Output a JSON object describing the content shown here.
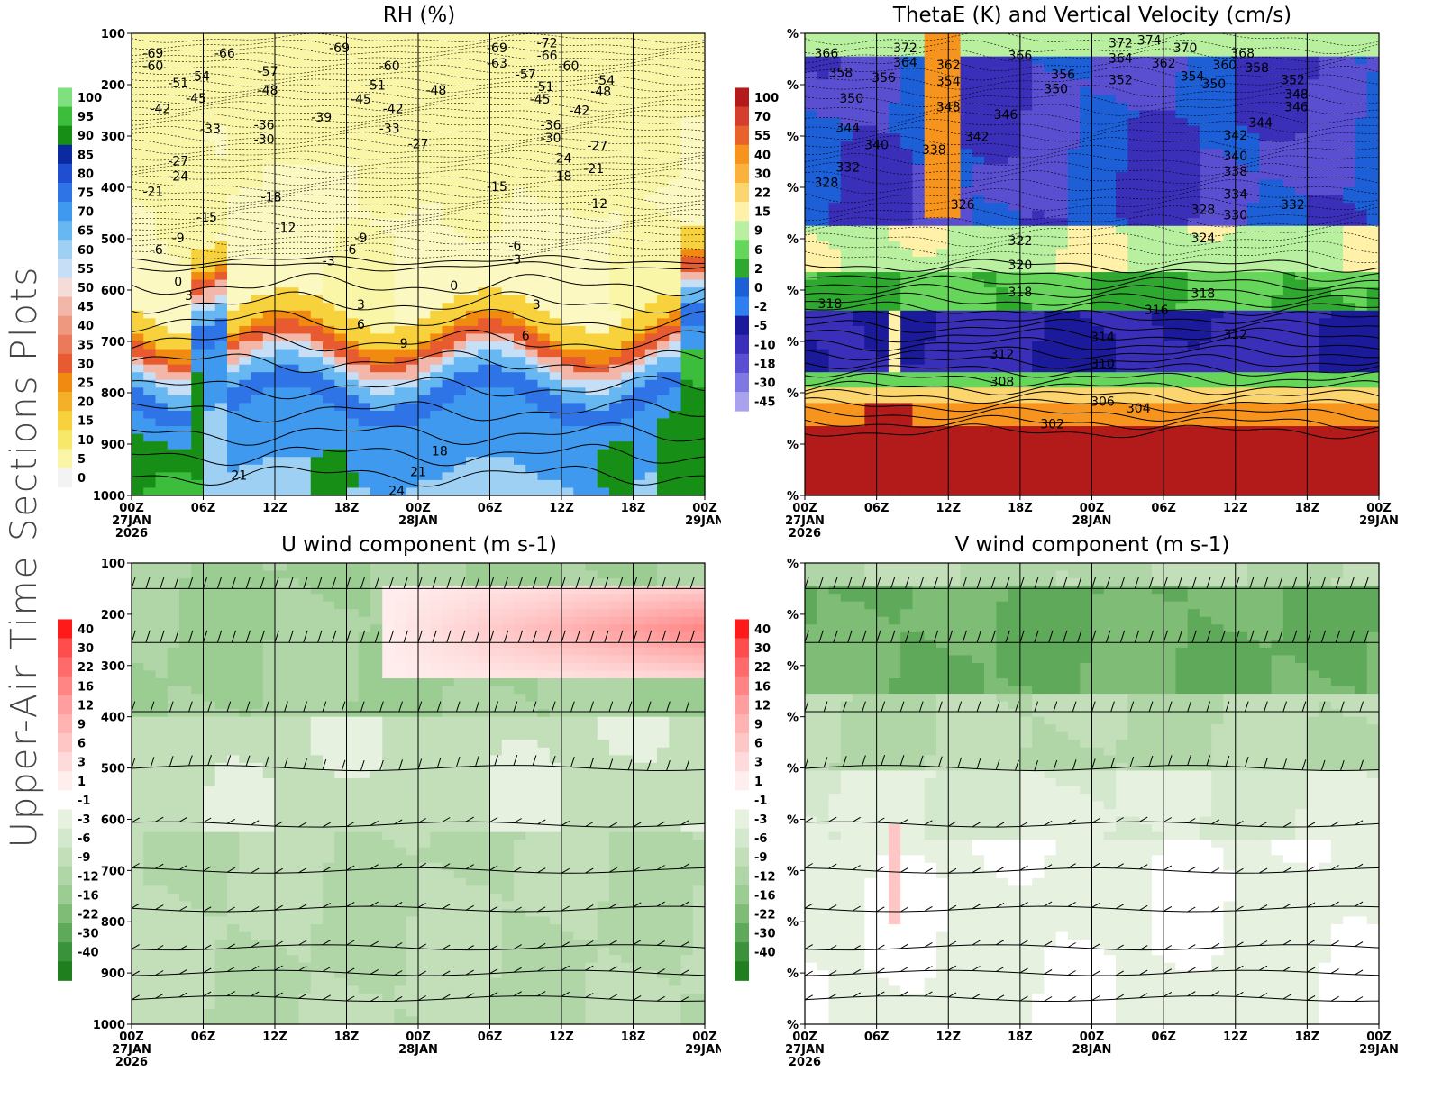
{
  "page": {
    "side_title": "Upper-Air Time Sections Plots"
  },
  "time_axis": {
    "labels": [
      "00Z",
      "06Z",
      "12Z",
      "18Z",
      "00Z",
      "06Z",
      "12Z",
      "18Z",
      "00Z"
    ],
    "dates": {
      "0": [
        "27JAN",
        "2026"
      ],
      "4": [
        "28JAN"
      ],
      "8": [
        "29JAN"
      ]
    }
  },
  "chart_data": [
    {
      "id": "rh",
      "type": "heatmap",
      "title": "RH (%)",
      "xlabel": "",
      "ylabel": "",
      "y_ticks": [
        "100",
        "200",
        "300",
        "400",
        "500",
        "600",
        "700",
        "800",
        "900",
        "1000"
      ],
      "colorbar": {
        "levels": [
          "100",
          "95",
          "90",
          "85",
          "80",
          "75",
          "70",
          "65",
          "60",
          "55",
          "50",
          "45",
          "40",
          "35",
          "30",
          "25",
          "20",
          "15",
          "10",
          "5",
          "0"
        ],
        "colors": [
          "#7ee07e",
          "#3cbd3c",
          "#178f17",
          "#0c2aa0",
          "#1f4fd0",
          "#2e74e6",
          "#3f99ef",
          "#67b8f2",
          "#9ed0f4",
          "#c6dff6",
          "#f4dcd8",
          "#f2b7a8",
          "#ee9880",
          "#ea7a5a",
          "#e85a2f",
          "#f08a10",
          "#f5b02a",
          "#f8d23c",
          "#f7e86a",
          "#faf6a8",
          "#f3f3f3"
        ]
      },
      "contour_labels": [
        {
          "t": 0.3,
          "p": 140,
          "v": "-69"
        },
        {
          "t": 1.3,
          "p": 140,
          "v": "-66"
        },
        {
          "t": 2.9,
          "p": 130,
          "v": "-69"
        },
        {
          "t": 5.1,
          "p": 130,
          "v": "-69"
        },
        {
          "t": 5.8,
          "p": 120,
          "v": "-72"
        },
        {
          "t": 5.8,
          "p": 145,
          "v": "-66"
        },
        {
          "t": 5.1,
          "p": 160,
          "v": "-63"
        },
        {
          "t": 0.3,
          "p": 165,
          "v": "-60"
        },
        {
          "t": 3.6,
          "p": 165,
          "v": "-60"
        },
        {
          "t": 6.1,
          "p": 165,
          "v": "-60"
        },
        {
          "t": 0.65,
          "p": 198,
          "v": "-51"
        },
        {
          "t": 0.95,
          "p": 185,
          "v": "-54"
        },
        {
          "t": 1.9,
          "p": 175,
          "v": "-57"
        },
        {
          "t": 5.5,
          "p": 182,
          "v": "-57"
        },
        {
          "t": 6.6,
          "p": 193,
          "v": "-54"
        },
        {
          "t": 1.9,
          "p": 212,
          "v": "-48"
        },
        {
          "t": 4.25,
          "p": 212,
          "v": "-48"
        },
        {
          "t": 6.55,
          "p": 215,
          "v": "-48"
        },
        {
          "t": 3.4,
          "p": 203,
          "v": "-51"
        },
        {
          "t": 5.75,
          "p": 205,
          "v": "-51"
        },
        {
          "t": 0.9,
          "p": 228,
          "v": "-45"
        },
        {
          "t": 3.2,
          "p": 230,
          "v": "-45"
        },
        {
          "t": 5.7,
          "p": 230,
          "v": "-45"
        },
        {
          "t": 0.4,
          "p": 248,
          "v": "-42"
        },
        {
          "t": 3.65,
          "p": 248,
          "v": "-42"
        },
        {
          "t": 6.25,
          "p": 252,
          "v": "-42"
        },
        {
          "t": 2.65,
          "p": 265,
          "v": "-39"
        },
        {
          "t": 1.1,
          "p": 288,
          "v": "-33"
        },
        {
          "t": 1.85,
          "p": 280,
          "v": "-36"
        },
        {
          "t": 3.6,
          "p": 287,
          "v": "-33"
        },
        {
          "t": 5.85,
          "p": 280,
          "v": "-36"
        },
        {
          "t": 1.85,
          "p": 308,
          "v": "-30"
        },
        {
          "t": 5.85,
          "p": 305,
          "v": "-30"
        },
        {
          "t": 4.0,
          "p": 317,
          "v": "-27"
        },
        {
          "t": 6.5,
          "p": 320,
          "v": "-27"
        },
        {
          "t": 0.65,
          "p": 350,
          "v": "-27"
        },
        {
          "t": 6.0,
          "p": 345,
          "v": "-24"
        },
        {
          "t": 6.45,
          "p": 365,
          "v": "-21"
        },
        {
          "t": 0.65,
          "p": 380,
          "v": "-24"
        },
        {
          "t": 6.0,
          "p": 380,
          "v": "-18"
        },
        {
          "t": 0.3,
          "p": 410,
          "v": "-21"
        },
        {
          "t": 5.1,
          "p": 400,
          "v": "-15"
        },
        {
          "t": 1.95,
          "p": 420,
          "v": "-18"
        },
        {
          "t": 6.5,
          "p": 433,
          "v": "-12"
        },
        {
          "t": 1.05,
          "p": 460,
          "v": "-15"
        },
        {
          "t": 2.15,
          "p": 480,
          "v": "-12"
        },
        {
          "t": 0.65,
          "p": 500,
          "v": "-9"
        },
        {
          "t": 3.2,
          "p": 500,
          "v": "-9"
        },
        {
          "t": 0.35,
          "p": 523,
          "v": "-6"
        },
        {
          "t": 3.05,
          "p": 523,
          "v": "-6"
        },
        {
          "t": 5.35,
          "p": 515,
          "v": "-6"
        },
        {
          "t": 2.75,
          "p": 545,
          "v": "-3"
        },
        {
          "t": 5.35,
          "p": 542,
          "v": "-3"
        },
        {
          "t": 0.65,
          "p": 585,
          "v": "0"
        },
        {
          "t": 4.5,
          "p": 593,
          "v": "0"
        },
        {
          "t": 0.8,
          "p": 612,
          "v": "3"
        },
        {
          "t": 3.2,
          "p": 630,
          "v": "3"
        },
        {
          "t": 5.65,
          "p": 630,
          "v": "3"
        },
        {
          "t": 3.2,
          "p": 668,
          "v": "6"
        },
        {
          "t": 5.5,
          "p": 690,
          "v": "6"
        },
        {
          "t": 3.8,
          "p": 705,
          "v": "9"
        },
        {
          "t": 4.3,
          "p": 915,
          "v": "18"
        },
        {
          "t": 1.5,
          "p": 962,
          "v": "21"
        },
        {
          "t": 4.0,
          "p": 955,
          "v": "21"
        },
        {
          "t": 3.7,
          "p": 992,
          "v": "24"
        }
      ]
    },
    {
      "id": "thetae",
      "type": "heatmap",
      "title": "ThetaE (K) and Vertical Velocity (cm/s)",
      "xlabel": "",
      "ylabel": "",
      "y_ticks": [
        "%",
        "%",
        "%",
        "%",
        "%",
        "%",
        "%",
        "%",
        "%",
        "%"
      ],
      "colorbar": {
        "levels": [
          "100",
          "70",
          "55",
          "40",
          "30",
          "22",
          "15",
          "9",
          "6",
          "2",
          "0",
          "-2",
          "-5",
          "-10",
          "-18",
          "-30",
          "-45"
        ],
        "colors": [
          "#b31b1b",
          "#d33f2c",
          "#e8632b",
          "#f7941d",
          "#fbb13c",
          "#fdd56e",
          "#fff2a8",
          "#b8f0a0",
          "#66d65a",
          "#2ea82e",
          "#1c5fd6",
          "#2f7ff0",
          "#1a1a9a",
          "#3a2fb8",
          "#5a4fd0",
          "#7f78e2",
          "#a9a3ef"
        ]
      },
      "contour_labels": [
        {
          "t": 0.3,
          "p": 140,
          "v": "366"
        },
        {
          "t": 1.4,
          "p": 130,
          "v": "372"
        },
        {
          "t": 4.4,
          "p": 120,
          "v": "372"
        },
        {
          "t": 4.8,
          "p": 115,
          "v": "374"
        },
        {
          "t": 5.3,
          "p": 130,
          "v": "370"
        },
        {
          "t": 6.1,
          "p": 140,
          "v": "368"
        },
        {
          "t": 1.4,
          "p": 158,
          "v": "364"
        },
        {
          "t": 2.0,
          "p": 163,
          "v": "362"
        },
        {
          "t": 3.0,
          "p": 145,
          "v": "366"
        },
        {
          "t": 4.4,
          "p": 150,
          "v": "364"
        },
        {
          "t": 5.0,
          "p": 160,
          "v": "362"
        },
        {
          "t": 5.85,
          "p": 163,
          "v": "360"
        },
        {
          "t": 6.3,
          "p": 168,
          "v": "358"
        },
        {
          "t": 0.5,
          "p": 178,
          "v": "358"
        },
        {
          "t": 1.1,
          "p": 188,
          "v": "356"
        },
        {
          "t": 2.0,
          "p": 195,
          "v": "354"
        },
        {
          "t": 3.6,
          "p": 182,
          "v": "356"
        },
        {
          "t": 4.4,
          "p": 192,
          "v": "352"
        },
        {
          "t": 5.4,
          "p": 185,
          "v": "354"
        },
        {
          "t": 5.7,
          "p": 200,
          "v": "350"
        },
        {
          "t": 6.8,
          "p": 192,
          "v": "352"
        },
        {
          "t": 0.65,
          "p": 228,
          "v": "350"
        },
        {
          "t": 3.5,
          "p": 210,
          "v": "350"
        },
        {
          "t": 6.85,
          "p": 220,
          "v": "348"
        },
        {
          "t": 6.85,
          "p": 245,
          "v": "346"
        },
        {
          "t": 2.0,
          "p": 245,
          "v": "348"
        },
        {
          "t": 2.8,
          "p": 260,
          "v": "346"
        },
        {
          "t": 6.35,
          "p": 275,
          "v": "344"
        },
        {
          "t": 0.6,
          "p": 285,
          "v": "344"
        },
        {
          "t": 2.4,
          "p": 303,
          "v": "342"
        },
        {
          "t": 6.0,
          "p": 300,
          "v": "342"
        },
        {
          "t": 1.0,
          "p": 318,
          "v": "340"
        },
        {
          "t": 1.8,
          "p": 328,
          "v": "338"
        },
        {
          "t": 6.0,
          "p": 340,
          "v": "340"
        },
        {
          "t": 6.0,
          "p": 370,
          "v": "338"
        },
        {
          "t": 0.6,
          "p": 362,
          "v": "332"
        },
        {
          "t": 0.3,
          "p": 392,
          "v": "328"
        },
        {
          "t": 6.0,
          "p": 415,
          "v": "334"
        },
        {
          "t": 6.8,
          "p": 435,
          "v": "332"
        },
        {
          "t": 5.55,
          "p": 445,
          "v": "328"
        },
        {
          "t": 6.0,
          "p": 455,
          "v": "330"
        },
        {
          "t": 2.2,
          "p": 435,
          "v": "326"
        },
        {
          "t": 3.0,
          "p": 505,
          "v": "322"
        },
        {
          "t": 5.55,
          "p": 500,
          "v": "324"
        },
        {
          "t": 3.0,
          "p": 553,
          "v": "320"
        },
        {
          "t": 3.0,
          "p": 605,
          "v": "318"
        },
        {
          "t": 5.55,
          "p": 608,
          "v": "318"
        },
        {
          "t": 0.35,
          "p": 628,
          "v": "318"
        },
        {
          "t": 4.9,
          "p": 640,
          "v": "316"
        },
        {
          "t": 4.15,
          "p": 693,
          "v": "314"
        },
        {
          "t": 6.0,
          "p": 688,
          "v": "312"
        },
        {
          "t": 2.75,
          "p": 726,
          "v": "312"
        },
        {
          "t": 4.15,
          "p": 745,
          "v": "310"
        },
        {
          "t": 2.75,
          "p": 780,
          "v": "308"
        },
        {
          "t": 4.15,
          "p": 818,
          "v": "306"
        },
        {
          "t": 4.65,
          "p": 832,
          "v": "304"
        },
        {
          "t": 3.45,
          "p": 862,
          "v": "302"
        }
      ]
    },
    {
      "id": "uwind",
      "type": "heatmap",
      "title": "U wind component (m s-1)",
      "xlabel": "",
      "ylabel": "",
      "y_ticks": [
        "100",
        "200",
        "300",
        "400",
        "500",
        "600",
        "700",
        "800",
        "900",
        "1000"
      ],
      "colorbar": {
        "levels": [
          "40",
          "30",
          "22",
          "16",
          "12",
          "9",
          "6",
          "3",
          "1",
          "-1",
          "-3",
          "-6",
          "-9",
          "-12",
          "-16",
          "-22",
          "-30",
          "-40"
        ],
        "colors": [
          "#ff1a1a",
          "#ff4d4d",
          "#ff6b6b",
          "#ff8585",
          "#ff9e9e",
          "#ffb3b3",
          "#ffc6c6",
          "#ffdada",
          "#ffeeee",
          "#ffffff",
          "#e6f1e0",
          "#d3e8cc",
          "#c2dfba",
          "#b0d6a7",
          "#9bcc92",
          "#7fbd77",
          "#5ea95a",
          "#3a923a",
          "#1f7f1f"
        ]
      },
      "barb_levels": [
        150,
        255,
        390,
        500,
        610,
        700,
        775,
        850,
        900,
        950
      ]
    },
    {
      "id": "vwind",
      "type": "heatmap",
      "title": "V wind component (m s-1)",
      "xlabel": "",
      "ylabel": "",
      "y_ticks": [
        "%",
        "%",
        "%",
        "%",
        "%",
        "%",
        "%",
        "%",
        "%",
        "%"
      ],
      "colorbar": {
        "levels": [
          "40",
          "30",
          "22",
          "16",
          "12",
          "9",
          "6",
          "3",
          "1",
          "-1",
          "-3",
          "-6",
          "-9",
          "-12",
          "-16",
          "-22",
          "-30",
          "-40"
        ],
        "colors": [
          "#ff1a1a",
          "#ff4d4d",
          "#ff6b6b",
          "#ff8585",
          "#ff9e9e",
          "#ffb3b3",
          "#ffc6c6",
          "#ffdada",
          "#ffeeee",
          "#ffffff",
          "#e6f1e0",
          "#d3e8cc",
          "#c2dfba",
          "#b0d6a7",
          "#9bcc92",
          "#7fbd77",
          "#5ea95a",
          "#3a923a",
          "#1f7f1f"
        ]
      },
      "barb_levels": [
        150,
        255,
        390,
        500,
        610,
        700,
        775,
        850,
        900,
        950
      ]
    }
  ]
}
